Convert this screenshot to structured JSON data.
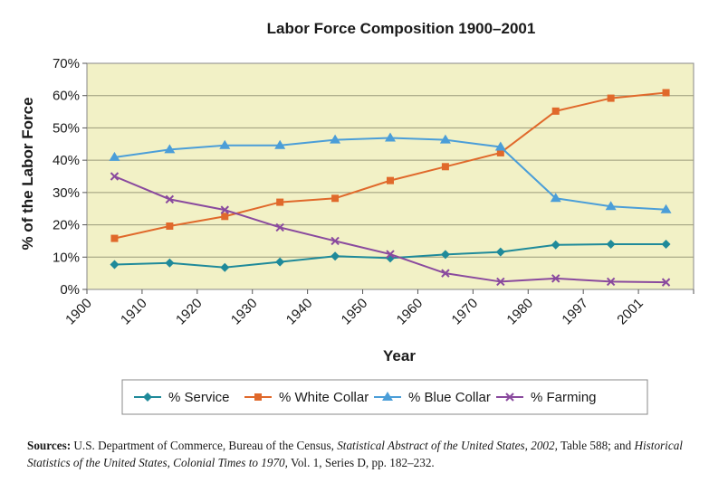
{
  "chart_data": {
    "type": "line",
    "title": "Labor Force Composition 1900–2001",
    "xlabel": "Year",
    "ylabel": "% of the Labor Force",
    "x_ticks": [
      "1900",
      "1910",
      "1920",
      "1930",
      "1940",
      "1950",
      "1960",
      "1970",
      "1980",
      "1997",
      "2001"
    ],
    "y_ticks": [
      "0%",
      "10%",
      "20%",
      "30%",
      "40%",
      "50%",
      "60%",
      "70%"
    ],
    "ylim": [
      0,
      70
    ],
    "grid": true,
    "legend_position": "bottom",
    "series": [
      {
        "name": "% Service",
        "color": "#1f8a9a",
        "marker": "diamond",
        "values": [
          7.7,
          8.2,
          6.8,
          8.5,
          10.3,
          9.7,
          10.8,
          11.6,
          13.8,
          14.0,
          14.0
        ]
      },
      {
        "name": "% White Collar",
        "color": "#e0692b",
        "marker": "square",
        "values": [
          15.8,
          19.6,
          22.6,
          27.0,
          28.2,
          33.7,
          38.0,
          42.3,
          55.2,
          59.2,
          60.9
        ]
      },
      {
        "name": "% Blue Collar",
        "color": "#4b9ed8",
        "marker": "triangle",
        "values": [
          40.9,
          43.3,
          44.6,
          44.6,
          46.3,
          46.9,
          46.3,
          44.1,
          28.2,
          25.7,
          24.7
        ]
      },
      {
        "name": "% Farming",
        "color": "#8a4a9e",
        "marker": "x",
        "values": [
          35.0,
          27.9,
          24.6,
          19.2,
          15.0,
          10.9,
          5.0,
          2.4,
          3.4,
          2.4,
          2.2
        ]
      }
    ]
  },
  "sources": {
    "label": "Sources:",
    "text1": " U.S. Department of Commerce, Bureau of the Census, ",
    "italic1": "Statistical Abstract of the United States, 2002,",
    "text2": " Table 588; and ",
    "italic2": "Historical Statistics of the United States, Colonial Times to 1970,",
    "text3": " Vol. 1, Series D, pp. 182–232."
  }
}
